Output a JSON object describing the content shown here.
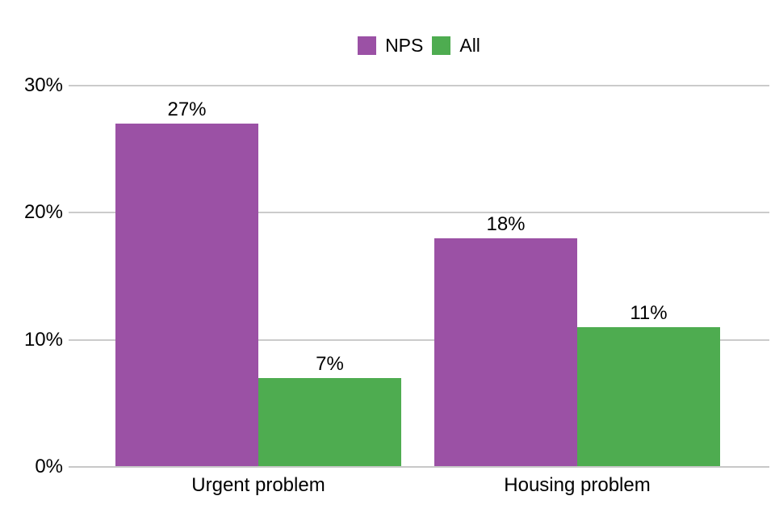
{
  "chart_data": {
    "type": "bar",
    "title": "",
    "xlabel": "",
    "ylabel": "",
    "categories": [
      "Urgent problem",
      "Housing problem"
    ],
    "series": [
      {
        "name": "NPS",
        "color": "#9B51A5",
        "values": [
          27,
          18
        ],
        "data_labels": [
          "27%",
          "18%"
        ]
      },
      {
        "name": "All",
        "color": "#4EAC50",
        "values": [
          7,
          11
        ],
        "data_labels": [
          "7%",
          "11%"
        ]
      }
    ],
    "ylim": [
      0,
      30
    ],
    "yticks": [
      0,
      10,
      20,
      30
    ],
    "ytick_labels": [
      "0%",
      "10%",
      "20%",
      "30%"
    ],
    "grid": true,
    "legend_position": "top-center",
    "colors": {
      "background": "#FFFFFF",
      "gridline": "#CBCBCB",
      "axis_line": "#C8C8C8",
      "text": "#000000"
    }
  }
}
